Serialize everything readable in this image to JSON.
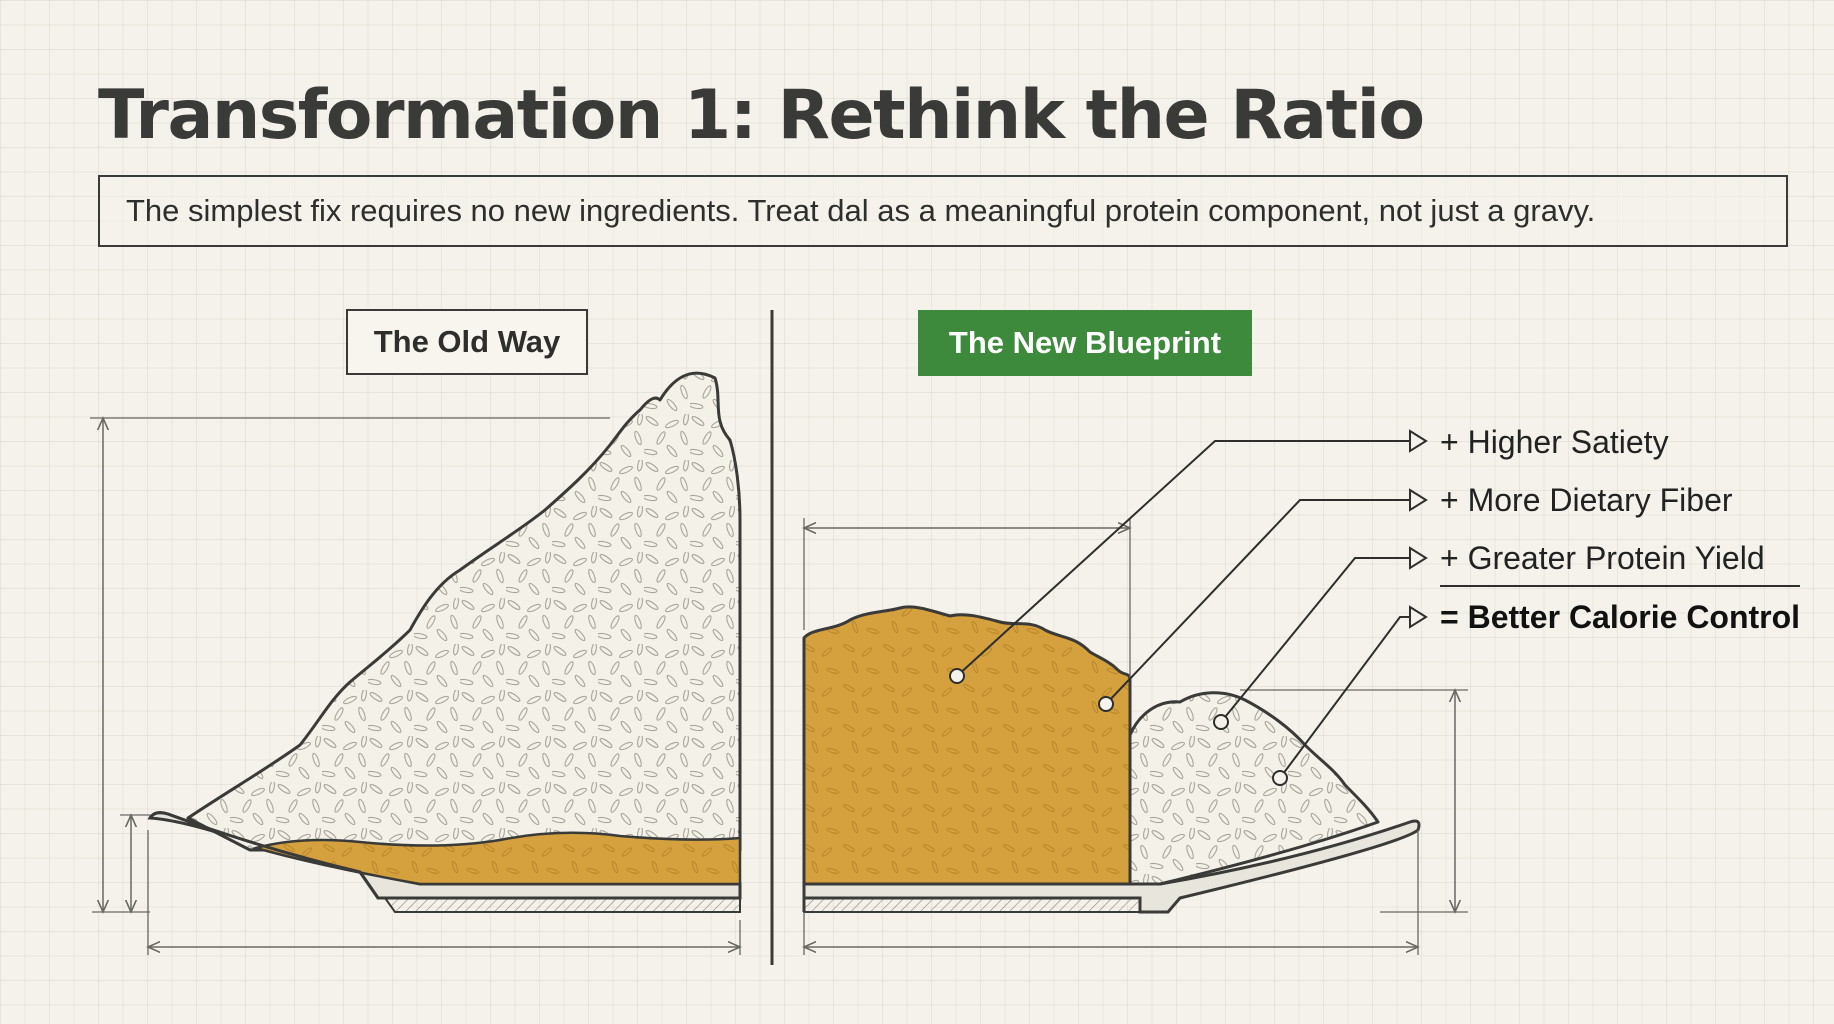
{
  "title": "Transformation 1: Rethink the Ratio",
  "subtitle": "The simplest fix requires no new ingredients. Treat dal as a meaningful protein component, not just a gravy.",
  "panels": {
    "old": {
      "label": "The Old Way"
    },
    "new": {
      "label": "The New Blueprint",
      "accent_color": "#3d8a3d"
    }
  },
  "benefits": [
    {
      "text": "+ Higher Satiety"
    },
    {
      "text": "+ More Dietary Fiber"
    },
    {
      "text": "+ Greater Protein Yield"
    }
  ],
  "result": {
    "text": "= Better Calorie Control"
  },
  "colors": {
    "background": "#f4f2ea",
    "dal": "#d4a13e",
    "rice": "#f3f1e8",
    "ink": "#3a3a38"
  }
}
